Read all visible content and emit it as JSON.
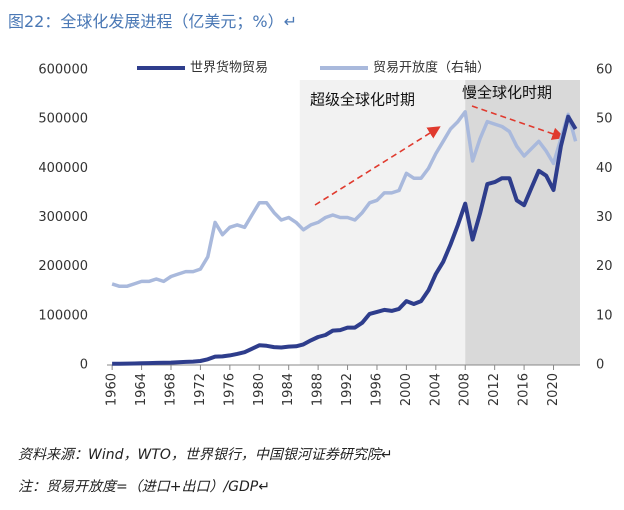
{
  "chart_data": {
    "type": "line",
    "title": "图22：全球化发展进程（亿美元；%）↵",
    "x": [
      1960,
      1961,
      1962,
      1963,
      1964,
      1965,
      1966,
      1967,
      1968,
      1969,
      1970,
      1971,
      1972,
      1973,
      1974,
      1975,
      1976,
      1977,
      1978,
      1979,
      1980,
      1981,
      1982,
      1983,
      1984,
      1985,
      1986,
      1987,
      1988,
      1989,
      1990,
      1991,
      1992,
      1993,
      1994,
      1995,
      1996,
      1997,
      1998,
      1999,
      2000,
      2001,
      2002,
      2003,
      2004,
      2005,
      2006,
      2007,
      2008,
      2009,
      2010,
      2011,
      2012,
      2013,
      2014,
      2015,
      2016,
      2017,
      2018,
      2019,
      2020,
      2021,
      2022,
      2023
    ],
    "series": [
      {
        "name": "世界货物贸易",
        "color": "#2e3d8c",
        "values": [
          2600,
          2700,
          2850,
          3100,
          3500,
          3800,
          4200,
          4400,
          4900,
          5600,
          6300,
          7000,
          8200,
          11500,
          17000,
          17500,
          19500,
          22500,
          26000,
          33000,
          40000,
          39000,
          36500,
          35500,
          37500,
          38000,
          42000,
          50000,
          57000,
          61000,
          70000,
          71000,
          76000,
          76000,
          86000,
          104000,
          108000,
          112000,
          110000,
          114000,
          130000,
          124000,
          130000,
          152000,
          185000,
          210000,
          245000,
          285000,
          328000,
          255000,
          308000,
          368000,
          372000,
          380000,
          380000,
          335000,
          325000,
          360000,
          395000,
          385000,
          356000,
          445000,
          505000,
          480000
        ]
      },
      {
        "name": "贸易开放度（右轴）",
        "color": "#a9b9dc",
        "axis": "y2",
        "values": [
          16.5,
          16,
          16,
          16.5,
          17,
          17,
          17.5,
          17,
          18,
          18.5,
          19,
          19,
          19.5,
          22,
          29,
          26.5,
          28,
          28.5,
          28,
          30.5,
          33,
          33,
          31,
          29.5,
          30,
          29,
          27.5,
          28.5,
          29,
          30,
          30.5,
          30,
          30,
          29.5,
          31,
          33,
          33.5,
          35,
          35,
          35.5,
          39,
          38,
          38,
          40,
          43,
          45.5,
          48,
          49.5,
          51.5,
          41.5,
          46,
          49.5,
          49,
          48.5,
          47.5,
          44.5,
          42.5,
          44,
          45.5,
          43.5,
          41,
          46,
          51,
          45.5
        ]
      }
    ],
    "xlim": [
      1959.3,
      2023.6
    ],
    "xticks": [
      1960,
      1964,
      1968,
      1972,
      1976,
      1980,
      1984,
      1988,
      1992,
      1996,
      2000,
      2004,
      2008,
      2012,
      2016,
      2020
    ],
    "ylim": [
      0,
      600000
    ],
    "yticks": [
      0,
      100000,
      200000,
      300000,
      400000,
      500000,
      600000
    ],
    "y2lim": [
      0,
      60
    ],
    "y2ticks": [
      0,
      10,
      20,
      30,
      40,
      50,
      60
    ],
    "grid": false,
    "legend": "top",
    "shaded_periods": [
      {
        "label": "超级全球化时期",
        "from": 1985.5,
        "to": 2008,
        "color": "#f2f2f2"
      },
      {
        "label": "慢全球化时期",
        "from": 2008,
        "to": 2023.6,
        "color": "#d9d9d9"
      }
    ],
    "notes": [
      "资料来源：Wind，WTO，世界银行，中国银河证券研究院↵",
      "注：贸易开放度=（进口+出口）/GDP↵"
    ]
  }
}
